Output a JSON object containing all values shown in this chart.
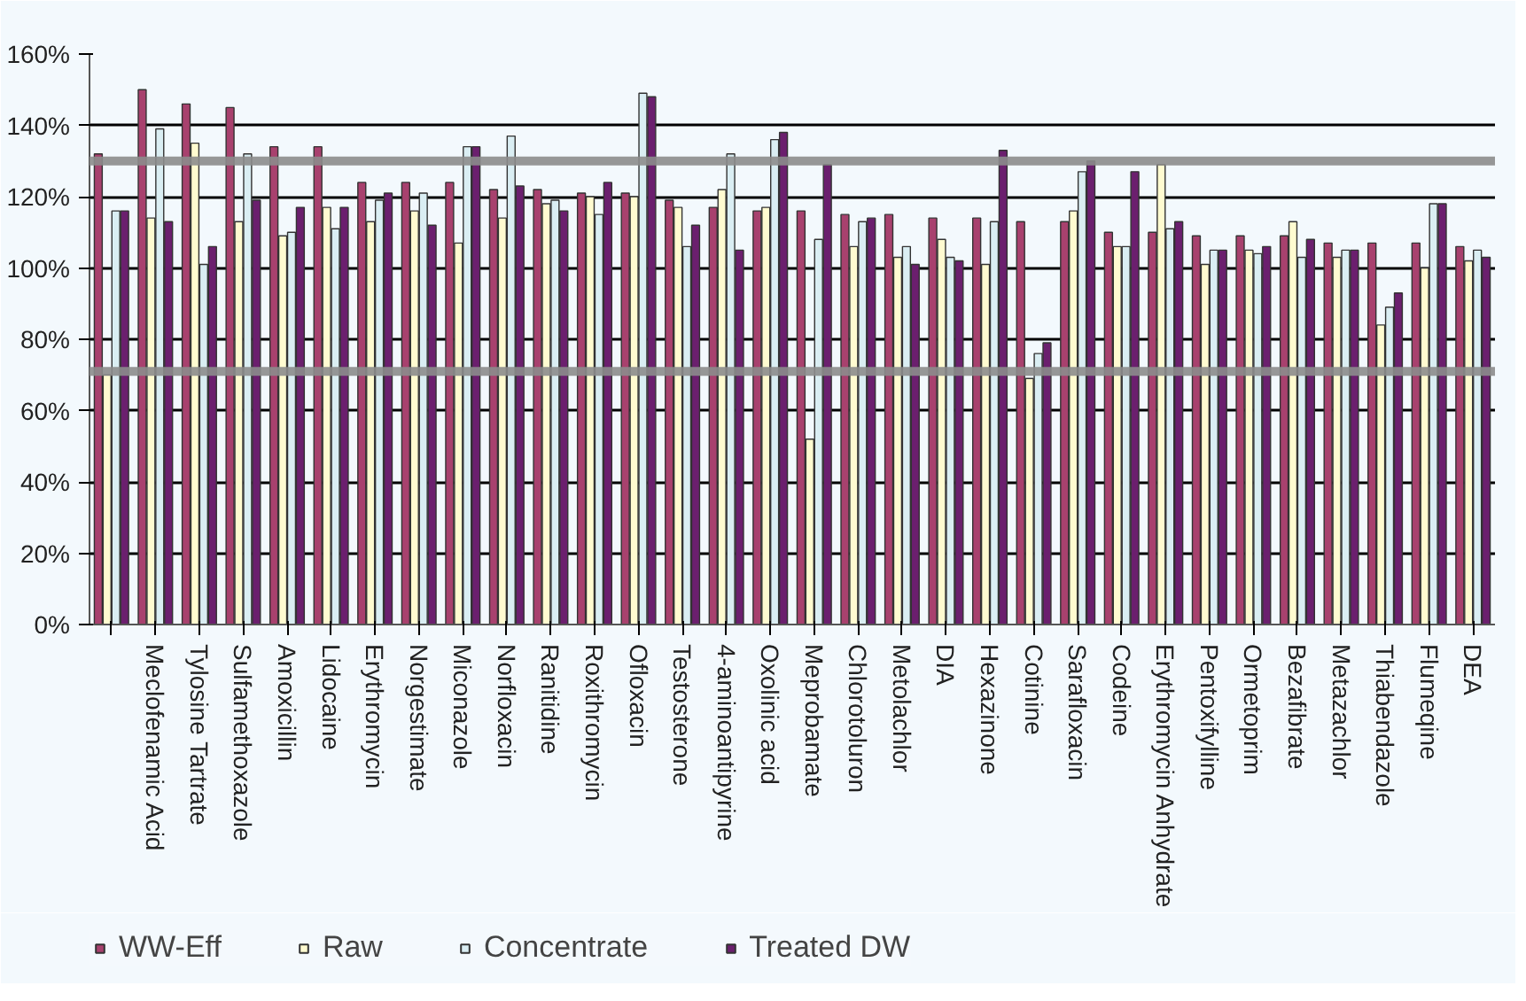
{
  "chart_data": {
    "type": "bar",
    "categories": [
      null,
      "Meclofenamic Acid",
      "Tylosine Tartrate",
      "Sulfamethoxazole",
      "Amoxicillin",
      "Lidocaine",
      "Erythromycin",
      "Norgestimate",
      "Miconazole",
      "Norfloxacin",
      "Ranitidine",
      "Roxithromycin",
      "Ofloxacin",
      "Testosterone",
      "4-aminoantipyrine",
      "Oxolinic acid",
      "Meprobamate",
      "Chlorotoluron",
      "Metolachlor",
      "DIA",
      "Hexazinone",
      "Cotinine",
      "Sarafloxacin",
      "Codeine",
      "Erythromycin Anhydrate",
      "Pentoxifylline",
      "Ormetoprim",
      "Bezafibrate",
      "Metazachlor",
      "Thiabendazole",
      "Flumeqine",
      "DEA"
    ],
    "series": [
      {
        "name": "WW-Eff",
        "color": "#a8416e",
        "values": [
          132,
          150,
          146,
          145,
          134,
          134,
          124,
          124,
          124,
          122,
          122,
          121,
          121,
          119,
          117,
          116,
          116,
          115,
          115,
          114,
          114,
          113,
          113,
          110,
          110,
          109,
          109,
          109,
          107,
          107,
          107,
          106
        ]
      },
      {
        "name": "Raw",
        "color": "#fffbd0",
        "values": [
          70,
          114,
          135,
          113,
          109,
          117,
          113,
          116,
          107,
          114,
          118,
          120,
          120,
          117,
          122,
          117,
          52,
          106,
          103,
          108,
          101,
          69,
          116,
          106,
          129,
          101,
          105,
          113,
          103,
          84,
          100,
          102
        ]
      },
      {
        "name": "Concentrate",
        "color": "#daeef3",
        "values": [
          116,
          139,
          101,
          132,
          110,
          111,
          119,
          121,
          134,
          137,
          119,
          115,
          149,
          106,
          132,
          136,
          108,
          113,
          106,
          103,
          113,
          76,
          127,
          106,
          111,
          105,
          104,
          103,
          105,
          89,
          118,
          105
        ]
      },
      {
        "name": "Treated DW",
        "color": "#6b1f6e",
        "values": [
          116,
          113,
          106,
          119,
          117,
          117,
          121,
          112,
          134,
          123,
          116,
          124,
          148,
          112,
          105,
          138,
          129,
          114,
          101,
          102,
          133,
          79,
          130,
          127,
          113,
          105,
          106,
          108,
          105,
          93,
          118,
          103
        ]
      }
    ],
    "ylim": [
      0,
      160
    ],
    "yticks": [
      {
        "value": 0,
        "label": "0%"
      },
      {
        "value": 20,
        "label": "20%"
      },
      {
        "value": 40,
        "label": "40%"
      },
      {
        "value": 60,
        "label": "60%"
      },
      {
        "value": 80,
        "label": "80%"
      },
      {
        "value": 100,
        "label": "100%"
      },
      {
        "value": 120,
        "label": "120%"
      },
      {
        "value": 140,
        "label": "140%"
      },
      {
        "value": 160,
        "label": "160%"
      }
    ],
    "ref_lines": [
      {
        "axis": "y",
        "value": 130,
        "label": null,
        "color": "#8c8c8c"
      },
      {
        "axis": "y",
        "value": 71,
        "label": null,
        "color": "#8c8c8c"
      }
    ],
    "grid": "y",
    "legend": "bottom"
  }
}
